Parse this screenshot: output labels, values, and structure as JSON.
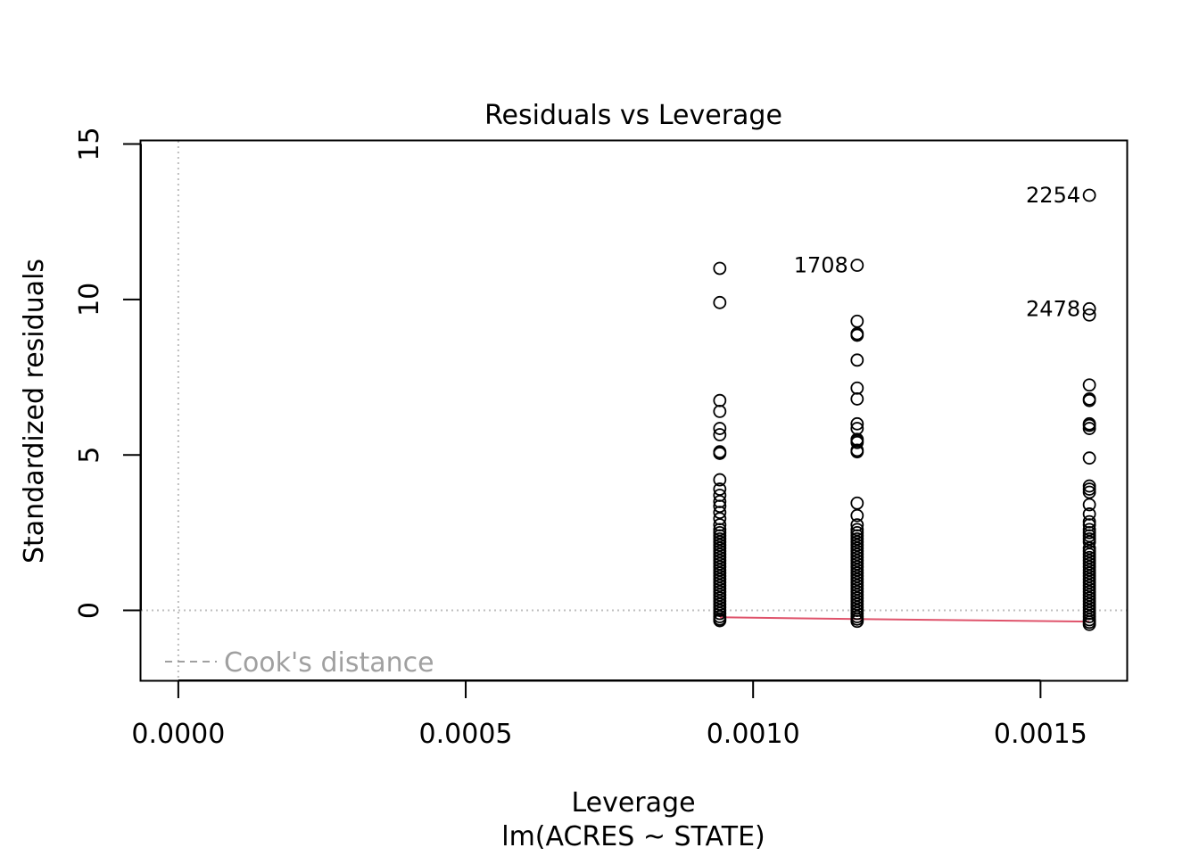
{
  "chart_data": {
    "type": "scatter",
    "title": "Residuals vs Leverage",
    "xlabel": "Leverage",
    "subtitle": "lm(ACRES ~ STATE)",
    "ylabel": "Standardized residuals",
    "xlim": [
      -6.5e-05,
      0.00165
    ],
    "ylim": [
      -2.25,
      15.1
    ],
    "x_ticks": [
      "0.0000",
      "0.0005",
      "0.0010",
      "0.0015"
    ],
    "x_tick_values": [
      0.0,
      0.0005,
      0.001,
      0.0015
    ],
    "y_ticks": [
      "0",
      "5",
      "10",
      "15"
    ],
    "y_tick_values": [
      0,
      5,
      10,
      15
    ],
    "reference_lines": {
      "x": 0,
      "y": 0,
      "style": "dotted",
      "color": "#bebebe"
    },
    "legend": {
      "entry": "Cook's distance",
      "position": "bottom-left",
      "line_style": "dashed",
      "color": "#a0a0a0"
    },
    "smooth_line": {
      "color": "#df536b",
      "x": [
        0.000942,
        0.001181,
        0.001585
      ],
      "y": [
        -0.22,
        -0.28,
        -0.36
      ]
    },
    "series": [
      {
        "x": 0.000942,
        "y": [
          11.0,
          9.9,
          6.75,
          6.4,
          5.85,
          5.65,
          5.1,
          5.05,
          4.2,
          3.9,
          3.7,
          3.5,
          3.35,
          3.15,
          2.95,
          2.75,
          2.6,
          2.5,
          2.4,
          2.3,
          2.2,
          2.1,
          2.0,
          1.9,
          1.8,
          1.7,
          1.6,
          1.5,
          1.4,
          1.3,
          1.2,
          1.1,
          1.0,
          0.9,
          0.8,
          0.7,
          0.6,
          0.5,
          0.4,
          0.3,
          0.2,
          0.1,
          0.0,
          -0.1,
          -0.2,
          -0.28,
          -0.33
        ]
      },
      {
        "x": 0.001181,
        "y": [
          11.1,
          9.3,
          8.9,
          8.85,
          8.05,
          7.15,
          6.8,
          6.0,
          5.85,
          5.5,
          5.45,
          5.4,
          5.15,
          5.1,
          3.45,
          3.05,
          2.75,
          2.6,
          2.5,
          2.4,
          2.3,
          2.2,
          2.1,
          2.0,
          1.9,
          1.8,
          1.7,
          1.6,
          1.5,
          1.4,
          1.3,
          1.2,
          1.1,
          1.0,
          0.9,
          0.8,
          0.7,
          0.6,
          0.5,
          0.4,
          0.3,
          0.2,
          0.1,
          0.0,
          -0.1,
          -0.2,
          -0.28,
          -0.35
        ]
      },
      {
        "x": 0.001585,
        "y": [
          13.35,
          9.7,
          9.5,
          7.25,
          6.8,
          6.75,
          6.0,
          5.95,
          5.85,
          4.9,
          4.0,
          3.9,
          3.8,
          3.4,
          3.1,
          2.85,
          2.75,
          2.6,
          2.5,
          2.4,
          2.3,
          2.2,
          2.0,
          1.9,
          1.8,
          1.7,
          1.6,
          1.5,
          1.4,
          1.3,
          1.2,
          1.1,
          1.0,
          0.9,
          0.8,
          0.7,
          0.6,
          0.5,
          0.4,
          0.3,
          0.2,
          0.1,
          0.0,
          -0.1,
          -0.2,
          -0.3,
          -0.38,
          -0.45
        ]
      }
    ],
    "point_labels": [
      {
        "text": "2254",
        "x": 0.001585,
        "y": 13.35
      },
      {
        "text": "1708",
        "x": 0.001181,
        "y": 11.1
      },
      {
        "text": "2478",
        "x": 0.001585,
        "y": 9.7
      }
    ]
  }
}
